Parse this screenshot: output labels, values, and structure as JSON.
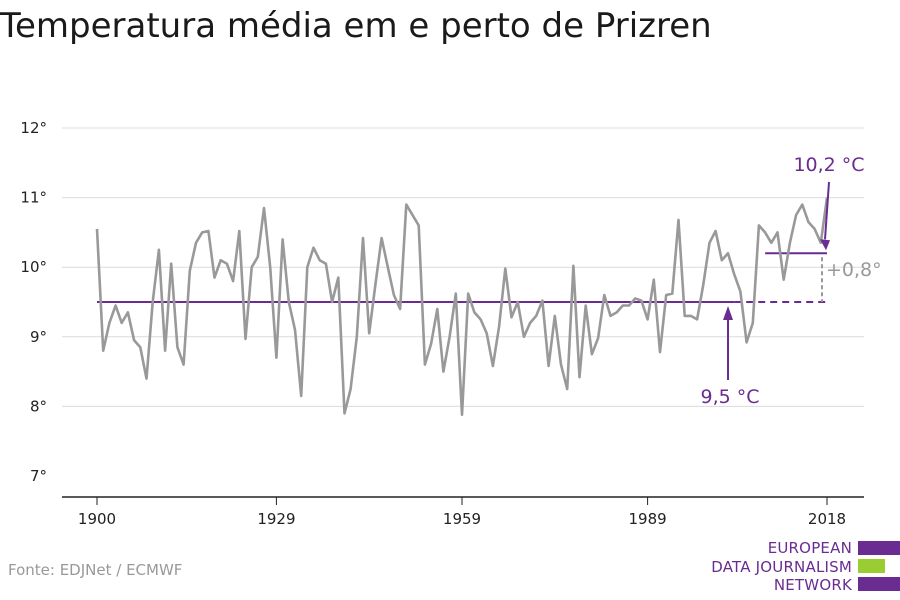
{
  "title": "Temperatura média em e perto de Prizren",
  "source": "Fonte: EDJNet / ECMWF",
  "logo": {
    "lines": [
      "EUROPEAN",
      "DATA JOURNALISM",
      "NETWORK"
    ],
    "colors": [
      "#6a2c91",
      "#9acd32",
      "#6a2c91"
    ]
  },
  "chart_data": {
    "type": "line",
    "title": "Temperatura média em e perto de Prizren",
    "xlabel": "",
    "ylabel": "",
    "xlim": [
      1900,
      2018
    ],
    "ylim": [
      7,
      12
    ],
    "x_ticks": [
      1900,
      1929,
      1959,
      1989,
      2018
    ],
    "x_tick_labels": [
      "1900",
      "1929",
      "1959",
      "1989",
      "2018"
    ],
    "y_ticks": [
      7,
      8,
      9,
      10,
      11,
      12
    ],
    "y_tick_labels": [
      "7°",
      "8°",
      "9°",
      "10°",
      "11°",
      "12°"
    ],
    "grid": true,
    "series": [
      {
        "color": "#999999",
        "x": [
          1900,
          1901,
          1902,
          1903,
          1904,
          1905,
          1906,
          1907,
          1908,
          1909,
          1910,
          1911,
          1912,
          1913,
          1914,
          1915,
          1916,
          1917,
          1918,
          1919,
          1920,
          1921,
          1922,
          1923,
          1924,
          1925,
          1926,
          1927,
          1928,
          1929,
          1930,
          1931,
          1932,
          1933,
          1934,
          1935,
          1936,
          1937,
          1938,
          1939,
          1940,
          1941,
          1942,
          1943,
          1944,
          1945,
          1946,
          1947,
          1948,
          1949,
          1950,
          1951,
          1952,
          1953,
          1954,
          1955,
          1956,
          1957,
          1958,
          1959,
          1960,
          1961,
          1962,
          1963,
          1964,
          1965,
          1966,
          1967,
          1968,
          1969,
          1970,
          1971,
          1972,
          1973,
          1974,
          1975,
          1976,
          1977,
          1978,
          1979,
          1980,
          1981,
          1982,
          1983,
          1984,
          1985,
          1986,
          1987,
          1988,
          1989,
          1990,
          1991,
          1992,
          1993,
          1994,
          1995,
          1996,
          1997,
          1998,
          1999,
          2000,
          2001,
          2002,
          2003,
          2004,
          2005,
          2006,
          2007,
          2008,
          2009,
          2010,
          2011,
          2012,
          2013,
          2014,
          2015,
          2016,
          2017,
          2018
        ],
        "values": [
          10.55,
          8.8,
          9.2,
          9.45,
          9.2,
          9.35,
          8.95,
          8.85,
          8.4,
          9.5,
          10.25,
          8.8,
          10.05,
          8.85,
          8.6,
          9.95,
          10.35,
          10.5,
          10.52,
          9.85,
          10.1,
          10.05,
          9.8,
          10.52,
          8.97,
          10.0,
          10.15,
          10.85,
          10.0,
          8.7,
          10.4,
          9.5,
          9.1,
          8.15,
          10.0,
          10.28,
          10.1,
          10.05,
          9.5,
          9.85,
          7.9,
          8.25,
          9.0,
          10.42,
          9.05,
          9.75,
          10.42,
          10.0,
          9.6,
          9.4,
          10.9,
          10.75,
          10.6,
          8.6,
          8.9,
          9.4,
          8.5,
          9.0,
          9.62,
          7.88,
          9.62,
          9.35,
          9.25,
          9.05,
          8.58,
          9.15,
          9.98,
          9.28,
          9.5,
          9.0,
          9.2,
          9.3,
          9.52,
          8.58,
          9.3,
          8.6,
          8.25,
          10.02,
          8.42,
          9.45,
          8.75,
          8.98,
          9.6,
          9.3,
          9.35,
          9.45,
          9.45,
          9.55,
          9.52,
          9.25,
          9.82,
          8.78,
          9.6,
          9.62,
          10.68,
          9.3,
          9.3,
          9.25,
          9.75,
          10.35,
          10.52,
          10.1,
          10.2,
          9.9,
          9.65,
          8.92,
          9.2,
          10.6,
          10.5,
          10.35,
          10.5,
          9.82,
          10.35,
          10.75,
          10.9,
          10.65,
          10.55,
          10.35,
          11.0
        ]
      }
    ],
    "reference_lines": [
      {
        "x_start": 1900,
        "x_end": 2003,
        "value": 9.5,
        "style": "solid",
        "label": "9,5 °C"
      },
      {
        "x_start": 2003,
        "x_end": 2018,
        "value": 9.5,
        "style": "dashed"
      },
      {
        "x_start": 2008,
        "x_end": 2018,
        "value": 10.2,
        "style": "solid",
        "label": "10,2 °C"
      }
    ],
    "difference_label": "+0,8°",
    "accent_color": "#6a2c91"
  }
}
